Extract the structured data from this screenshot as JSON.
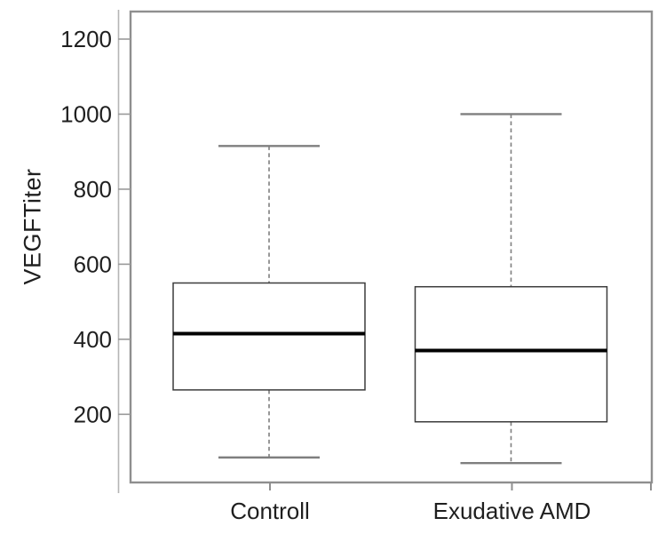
{
  "chart_data": {
    "type": "boxplot",
    "title": "",
    "ylabel": "VEGFTiter",
    "xlabel": "",
    "ylim": [
      20,
      1270
    ],
    "yticks": [
      1200,
      1000,
      800,
      600,
      400,
      200
    ],
    "grid": false,
    "legend": "none",
    "categories": [
      "Controll",
      "Exudative AMD"
    ],
    "series": [
      {
        "name": "Controll",
        "whisker_low": 85,
        "q1": 265,
        "median": 415,
        "q3": 550,
        "whisker_high": 915,
        "outliers": []
      },
      {
        "name": "Exudative AMD",
        "whisker_low": 70,
        "q1": 180,
        "median": 370,
        "q3": 540,
        "whisker_high": 1000,
        "outliers": []
      }
    ],
    "colors": {
      "background": "#ffffff",
      "frame": "#8f8f8f",
      "axis_line": "#b5b5b5",
      "tick": "#9a9a9a",
      "box_border": "#3c3c3c",
      "box_fill": "#ffffff",
      "median": "#000000",
      "whisker": "#7f7f7f",
      "text": "#1f1f1f"
    }
  }
}
